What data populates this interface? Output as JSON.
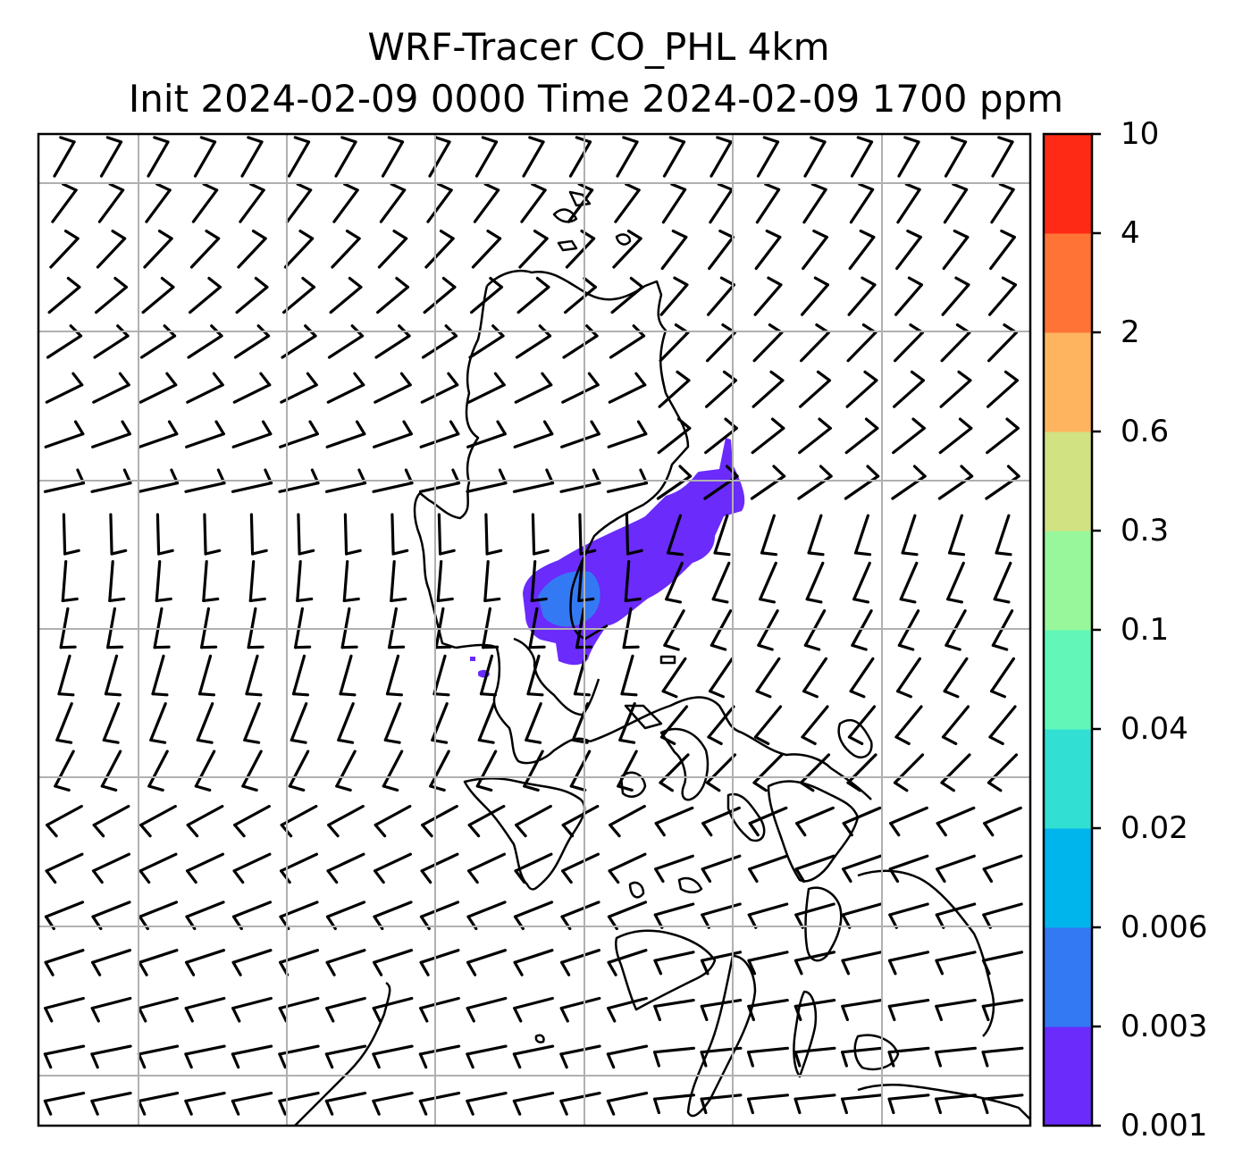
{
  "title": {
    "line1": "WRF-Tracer CO_PHL 4km",
    "line2": "Init 2024-02-09 0000 Time 2024-02-09 1700 ppm"
  },
  "colorbar": {
    "labels": [
      "0.001",
      "0.003",
      "0.006",
      "0.02",
      "0.04",
      "0.1",
      "0.3",
      "0.6",
      "2",
      "4",
      "10"
    ],
    "colors": [
      "#6a2bfb",
      "#3479f4",
      "#00b4ec",
      "#31e0d2",
      "#62f7b9",
      "#97f79a",
      "#d1e283",
      "#feb45f",
      "#ff7436",
      "#ff2a16"
    ]
  },
  "map": {
    "wind_barbs": "shown",
    "tracer_species": "CO_PHL",
    "grid": "on"
  }
}
